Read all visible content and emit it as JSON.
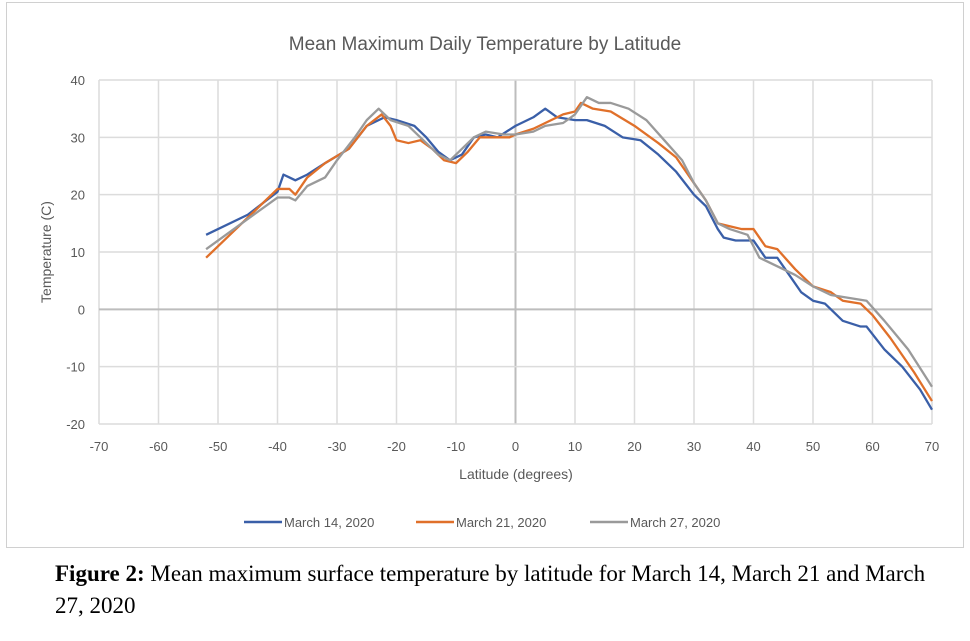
{
  "chart_data": {
    "type": "line",
    "title": "Mean Maximum Daily Temperature by Latitude",
    "xlabel": "Latitude (degrees)",
    "ylabel": "Temperature (C)",
    "xlim": [
      -70,
      70
    ],
    "ylim": [
      -20,
      40
    ],
    "xticks": [
      -70,
      -60,
      -50,
      -40,
      -30,
      -20,
      -10,
      0,
      10,
      20,
      30,
      40,
      50,
      60,
      70
    ],
    "yticks": [
      -20,
      -10,
      0,
      10,
      20,
      30,
      40
    ],
    "grid": true,
    "legend": "bottom",
    "series": [
      {
        "name": "March 14, 2020",
        "color": "#3a5fa8",
        "points": [
          [
            -52,
            13
          ],
          [
            -45,
            16.5
          ],
          [
            -40,
            20.5
          ],
          [
            -39,
            23.5
          ],
          [
            -38,
            23
          ],
          [
            -37,
            22.5
          ],
          [
            -35,
            23.5
          ],
          [
            -32,
            25.5
          ],
          [
            -28,
            28
          ],
          [
            -25,
            32
          ],
          [
            -22,
            33.5
          ],
          [
            -20,
            33
          ],
          [
            -17,
            32
          ],
          [
            -15,
            30
          ],
          [
            -13,
            27.5
          ],
          [
            -11,
            26
          ],
          [
            -9,
            27
          ],
          [
            -7,
            30
          ],
          [
            -5,
            30.5
          ],
          [
            -3,
            30
          ],
          [
            0,
            32
          ],
          [
            3,
            33.5
          ],
          [
            5,
            35
          ],
          [
            7,
            33.5
          ],
          [
            10,
            33
          ],
          [
            12,
            33
          ],
          [
            15,
            32
          ],
          [
            18,
            30
          ],
          [
            21,
            29.5
          ],
          [
            24,
            27
          ],
          [
            27,
            24
          ],
          [
            30,
            20
          ],
          [
            32,
            18
          ],
          [
            34,
            14
          ],
          [
            35,
            12.5
          ],
          [
            37,
            12
          ],
          [
            40,
            12
          ],
          [
            42,
            9
          ],
          [
            44,
            9
          ],
          [
            46,
            6
          ],
          [
            48,
            3
          ],
          [
            50,
            1.5
          ],
          [
            52,
            1
          ],
          [
            55,
            -2
          ],
          [
            58,
            -3
          ],
          [
            59,
            -3
          ],
          [
            62,
            -7
          ],
          [
            65,
            -10
          ],
          [
            68,
            -14
          ],
          [
            70,
            -17.5
          ]
        ]
      },
      {
        "name": "March 21, 2020",
        "color": "#e0702a",
        "points": [
          [
            -52,
            9
          ],
          [
            -48,
            13
          ],
          [
            -44,
            17
          ],
          [
            -40,
            21
          ],
          [
            -38,
            21
          ],
          [
            -37,
            20
          ],
          [
            -35,
            23
          ],
          [
            -32,
            25.5
          ],
          [
            -28,
            28
          ],
          [
            -25,
            32
          ],
          [
            -22.5,
            34
          ],
          [
            -21,
            32
          ],
          [
            -20,
            29.5
          ],
          [
            -18,
            29
          ],
          [
            -16,
            29.5
          ],
          [
            -14,
            28
          ],
          [
            -12,
            26
          ],
          [
            -10,
            25.5
          ],
          [
            -8,
            27.5
          ],
          [
            -6,
            30
          ],
          [
            -3,
            30
          ],
          [
            -1,
            30
          ],
          [
            0,
            30.5
          ],
          [
            3,
            31.5
          ],
          [
            6,
            33
          ],
          [
            8,
            34
          ],
          [
            10,
            34.5
          ],
          [
            11,
            36
          ],
          [
            13,
            35
          ],
          [
            16,
            34.5
          ],
          [
            20,
            32
          ],
          [
            24,
            29
          ],
          [
            27,
            26.5
          ],
          [
            30,
            22
          ],
          [
            32,
            19
          ],
          [
            34,
            15
          ],
          [
            36,
            14.5
          ],
          [
            38,
            14
          ],
          [
            40,
            14
          ],
          [
            42,
            11
          ],
          [
            44,
            10.5
          ],
          [
            47,
            7
          ],
          [
            50,
            4
          ],
          [
            53,
            3
          ],
          [
            55,
            1.5
          ],
          [
            58,
            1
          ],
          [
            60,
            -1
          ],
          [
            63,
            -5
          ],
          [
            67,
            -11
          ],
          [
            70,
            -16
          ]
        ]
      },
      {
        "name": "March 27, 2020",
        "color": "#9a9a9a",
        "points": [
          [
            -52,
            10.5
          ],
          [
            -48,
            13.5
          ],
          [
            -44,
            16.5
          ],
          [
            -40,
            19.5
          ],
          [
            -38,
            19.5
          ],
          [
            -37,
            19
          ],
          [
            -35,
            21.5
          ],
          [
            -34,
            22
          ],
          [
            -32,
            23
          ],
          [
            -30,
            26
          ],
          [
            -27,
            30
          ],
          [
            -25,
            33
          ],
          [
            -23,
            35
          ],
          [
            -21,
            33
          ],
          [
            -18,
            32
          ],
          [
            -15,
            29
          ],
          [
            -13,
            27
          ],
          [
            -11,
            26
          ],
          [
            -9,
            28
          ],
          [
            -7,
            30
          ],
          [
            -5,
            31
          ],
          [
            -2,
            30.5
          ],
          [
            0,
            30.5
          ],
          [
            3,
            31
          ],
          [
            5,
            32
          ],
          [
            8,
            32.5
          ],
          [
            10,
            34
          ],
          [
            12,
            37
          ],
          [
            14,
            36
          ],
          [
            16,
            36
          ],
          [
            19,
            35
          ],
          [
            22,
            33
          ],
          [
            25,
            29.5
          ],
          [
            28,
            26
          ],
          [
            30,
            22
          ],
          [
            32,
            19
          ],
          [
            34,
            15
          ],
          [
            36,
            14
          ],
          [
            39,
            13
          ],
          [
            41,
            9
          ],
          [
            44,
            7.5
          ],
          [
            47,
            6
          ],
          [
            50,
            4
          ],
          [
            53,
            2.5
          ],
          [
            56,
            2
          ],
          [
            59,
            1.5
          ],
          [
            62,
            -2
          ],
          [
            66,
            -7
          ],
          [
            70,
            -13.5
          ]
        ]
      }
    ]
  },
  "caption": {
    "label": "Figure 2:",
    "text": " Mean maximum surface temperature by latitude for March 14, March 21 and March 27, 2020"
  }
}
